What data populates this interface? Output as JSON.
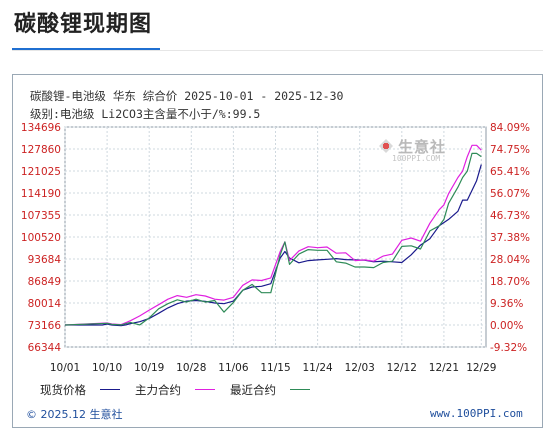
{
  "page": {
    "title": "碳酸锂现期图"
  },
  "chart_header": {
    "line1": "碳酸锂-电池级 华东 综合价 2025-10-01 - 2025-12-30",
    "line2": "级别:电池级 Li2CO3主含量不小于/%:99.5"
  },
  "logo": {
    "name": "生意社",
    "url": "100PPI.COM"
  },
  "legend": {
    "spot": "现货价格",
    "main": "主力合约",
    "nearest": "最近合约"
  },
  "footer": {
    "copyright": "© 2025.12 生意社",
    "site": "www.100PPI.com"
  },
  "colors": {
    "spot": "#1a1a8c",
    "main": "#e020e0",
    "nearest": "#2e8b57",
    "left_axis_text": "#cc2222",
    "right_axis_text": "#cc2222",
    "grid": "#cfd8df",
    "axis_bg_band": "#eef2f5"
  },
  "chart_data": {
    "type": "line",
    "title": "碳酸锂-电池级 华东 综合价 2025-10-01 - 2025-12-30",
    "x_ticks": [
      "10/01",
      "10/10",
      "10/19",
      "10/28",
      "11/06",
      "11/15",
      "11/24",
      "12/03",
      "12/12",
      "12/21",
      "12/29"
    ],
    "x_tick_days": [
      0,
      9,
      18,
      27,
      36,
      45,
      54,
      63,
      72,
      81,
      89
    ],
    "x_range_days": [
      0,
      90
    ],
    "y_ticks_left": [
      "134696",
      "127860",
      "121025",
      "114190",
      "107355",
      "100520",
      "93684",
      "86849",
      "80014",
      "73166",
      "66344"
    ],
    "y_ticks_right": [
      "84.09%",
      "74.75%",
      "65.41%",
      "56.07%",
      "46.73%",
      "37.38%",
      "28.04%",
      "18.70%",
      "9.36%",
      "0.00%",
      "-9.32%"
    ],
    "ylim": [
      66344,
      134696
    ],
    "right_axis_base": 73166,
    "grid": true,
    "legend_position": "bottom",
    "series": [
      {
        "name": "现货价格",
        "key": "spot",
        "days": [
          0,
          7,
          8,
          9,
          10,
          12,
          13,
          14,
          16,
          18,
          20,
          22,
          24,
          26,
          28,
          30,
          32,
          34,
          36,
          38,
          40,
          42,
          44,
          46,
          47,
          48,
          50,
          52,
          54,
          56,
          58,
          60,
          62,
          64,
          66,
          68,
          70,
          72,
          74,
          76,
          78,
          80,
          82,
          84,
          85,
          86,
          87,
          88,
          89
        ],
        "values": [
          73166,
          73166,
          73166,
          73500,
          73166,
          73000,
          73200,
          73600,
          74200,
          75200,
          76800,
          78500,
          79800,
          80600,
          80800,
          80500,
          80000,
          79800,
          80600,
          84000,
          85000,
          85200,
          86000,
          94000,
          96000,
          94000,
          92500,
          93200,
          93400,
          93600,
          93800,
          93500,
          93400,
          93300,
          92800,
          93000,
          92800,
          92600,
          95000,
          98000,
          100000,
          104000,
          106000,
          108500,
          112000,
          112000,
          115000,
          118000,
          123000
        ]
      },
      {
        "name": "主力合约",
        "key": "main",
        "days": [
          0,
          9,
          10,
          12,
          14,
          16,
          18,
          20,
          22,
          24,
          26,
          28,
          30,
          32,
          34,
          36,
          38,
          40,
          42,
          44,
          46,
          47,
          48,
          50,
          52,
          54,
          56,
          58,
          60,
          62,
          64,
          66,
          68,
          70,
          72,
          74,
          76,
          78,
          80,
          81,
          82,
          84,
          85,
          86,
          87,
          88,
          89
        ],
        "values": [
          73166,
          73800,
          73500,
          73300,
          74500,
          76000,
          77800,
          79500,
          81200,
          82300,
          81800,
          82600,
          82200,
          81200,
          80900,
          81800,
          85500,
          87200,
          87000,
          87800,
          96000,
          99000,
          93200,
          96200,
          97500,
          97200,
          97400,
          95500,
          95600,
          93200,
          93400,
          93000,
          94600,
          95200,
          99500,
          100200,
          99200,
          104800,
          109000,
          110500,
          114000,
          119000,
          121000,
          125500,
          129000,
          129000,
          127500
        ]
      },
      {
        "name": "最近合约",
        "key": "nearest",
        "days": [
          0,
          9,
          10,
          12,
          14,
          16,
          18,
          20,
          22,
          24,
          26,
          28,
          30,
          32,
          34,
          36,
          38,
          40,
          42,
          44,
          46,
          47,
          48,
          50,
          52,
          54,
          56,
          58,
          60,
          62,
          64,
          66,
          68,
          70,
          72,
          74,
          76,
          78,
          80,
          81,
          82,
          84,
          85,
          86,
          87,
          88,
          89
        ],
        "values": [
          73166,
          73700,
          73400,
          73200,
          74000,
          73200,
          75400,
          78200,
          79800,
          81000,
          80300,
          81200,
          80300,
          80800,
          77200,
          80200,
          84000,
          85800,
          83200,
          83200,
          95000,
          99000,
          92000,
          95200,
          96600,
          96400,
          96400,
          92800,
          92400,
          91200,
          91200,
          91000,
          92600,
          93000,
          97600,
          97800,
          96800,
          102400,
          104000,
          106000,
          111000,
          116000,
          119000,
          121000,
          126500,
          126500,
          125500
        ]
      }
    ]
  }
}
